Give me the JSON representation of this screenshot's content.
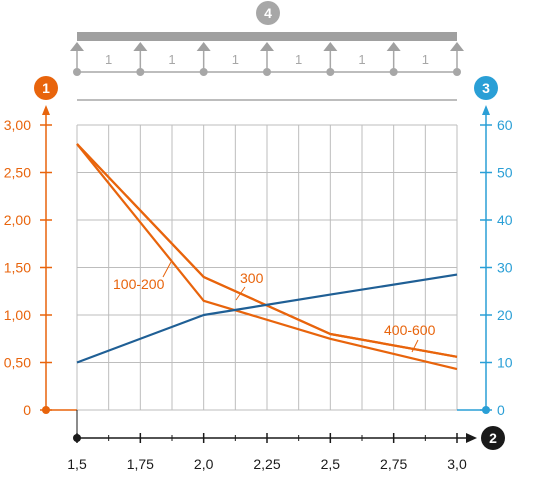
{
  "colors": {
    "orange": "#e8640c",
    "blue": "#2a9fd6",
    "dark_blue": "#1f5f95",
    "black": "#1a1a1a",
    "grid": "#bdbdbd",
    "beam": "#a0a0a0",
    "badge_gray": "#a7a7a7"
  },
  "badges": {
    "left_axis": "1",
    "x_axis": "2",
    "right_axis": "3",
    "beam": "4"
  },
  "beam": {
    "span_labels": [
      "1",
      "1",
      "1",
      "1",
      "1",
      "1"
    ]
  },
  "chart_data": {
    "type": "line",
    "x": [
      1.5,
      1.75,
      2.0,
      2.25,
      2.5,
      2.75,
      3.0
    ],
    "xlim": [
      1.5,
      3.0
    ],
    "x_tick_labels": [
      "1,5",
      "1,75",
      "2,0",
      "2,25",
      "2,5",
      "2,75",
      "3,0"
    ],
    "ylim_left": [
      0,
      3.0
    ],
    "y_left_tick_labels": [
      "0",
      "0,50",
      "1,00",
      "1,50",
      "2,00",
      "2,50",
      "3,00"
    ],
    "ylim_right": [
      0,
      60
    ],
    "y_right_tick_labels": [
      "0",
      "10",
      "20",
      "30",
      "40",
      "50",
      "60"
    ],
    "grid": true,
    "series": [
      {
        "name": "100-200",
        "axis": "left",
        "color": "orange",
        "points": [
          [
            1.5,
            2.8
          ],
          [
            2.0,
            1.15
          ],
          [
            2.5,
            0.75
          ],
          [
            3.0,
            0.43
          ]
        ]
      },
      {
        "name": "300",
        "axis": "left",
        "color": "orange",
        "points": [
          [
            1.5,
            2.8
          ],
          [
            2.0,
            1.4
          ],
          [
            2.5,
            0.8
          ],
          [
            3.0,
            0.56
          ]
        ]
      },
      {
        "name": "400-600",
        "axis": "left",
        "color": "orange",
        "points": [
          [
            1.5,
            2.8
          ],
          [
            2.0,
            1.4
          ],
          [
            2.5,
            0.8
          ],
          [
            3.0,
            0.56
          ]
        ]
      },
      {
        "name": "",
        "axis": "right",
        "color": "dark_blue",
        "points": [
          [
            1.5,
            10
          ],
          [
            2.0,
            20
          ],
          [
            2.5,
            24.3
          ],
          [
            3.0,
            28.5
          ]
        ]
      }
    ]
  }
}
